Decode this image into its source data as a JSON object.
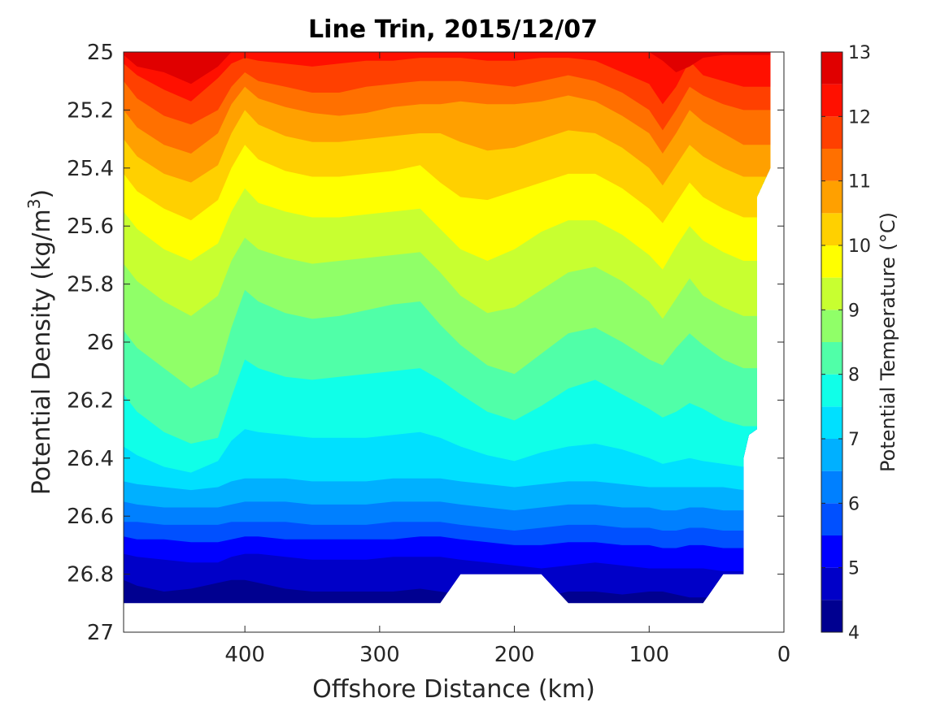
{
  "chart_data": {
    "type": "contour",
    "title": "Line Trin, 2015/12/07",
    "xlabel": "Offshore Distance (km)",
    "ylabel": "Potential Density (kg/m",
    "ylabel_superscript": "3",
    "ylabel_suffix": ")",
    "colorbar_label": "Potential Temperature (°C)",
    "xlim": [
      490,
      0
    ],
    "xaxis_reversed": true,
    "ylim": [
      25.0,
      27.0
    ],
    "yaxis_reversed": true,
    "x_ticks": [
      400,
      300,
      200,
      100,
      0
    ],
    "x_tick_labels": [
      "400",
      "300",
      "200",
      "100",
      "0"
    ],
    "y_ticks": [
      25.0,
      25.2,
      25.4,
      25.6,
      25.8,
      26.0,
      26.2,
      26.4,
      26.6,
      26.8,
      27.0
    ],
    "y_tick_labels": [
      "25",
      "25.2",
      "25.4",
      "25.6",
      "25.8",
      "26",
      "26.2",
      "26.4",
      "26.6",
      "26.8",
      "27"
    ],
    "colorbar_range": [
      4,
      13
    ],
    "colorbar_ticks": [
      4,
      5,
      6,
      7,
      8,
      9,
      10,
      11,
      12,
      13
    ],
    "colorbar_tick_labels": [
      "4",
      "5",
      "6",
      "7",
      "8",
      "9",
      "10",
      "11",
      "12",
      "13"
    ],
    "contour_step": 0.5,
    "level_colors": [
      "#000090",
      "#0000c8",
      "#0000ff",
      "#0050ff",
      "#0080ff",
      "#00b0ff",
      "#00e0ff",
      "#10ffe8",
      "#50ffa8",
      "#90ff68",
      "#c8ff30",
      "#ffff00",
      "#ffd000",
      "#ffa000",
      "#ff7000",
      "#ff4000",
      "#ff1000",
      "#e00000"
    ],
    "x_stations": [
      490,
      480,
      460,
      440,
      420,
      410,
      400,
      390,
      370,
      350,
      330,
      310,
      290,
      270,
      255,
      240,
      220,
      200,
      180,
      160,
      140,
      120,
      100,
      90,
      80,
      70,
      60,
      45,
      30
    ],
    "isotherms": [
      {
        "temperature": 12.5,
        "sigma": [
          25.01,
          25.05,
          25.07,
          25.11,
          25.05,
          25.0,
          25.0,
          25.0,
          25.0,
          25.0,
          25.0,
          25.0,
          25.0,
          25.0,
          25.0,
          25.0,
          25.0,
          25.0,
          25.0,
          25.0,
          25.0,
          25.0,
          25.0,
          25.03,
          25.07,
          25.05,
          25.02,
          25.01,
          25.01
        ]
      },
      {
        "temperature": 12.0,
        "sigma": [
          25.04,
          25.08,
          25.13,
          25.17,
          25.09,
          25.04,
          25.02,
          25.03,
          25.04,
          25.05,
          25.04,
          25.03,
          25.03,
          25.02,
          25.02,
          25.02,
          25.03,
          25.03,
          25.02,
          25.02,
          25.03,
          25.07,
          25.11,
          25.18,
          25.12,
          25.03,
          25.08,
          25.1,
          25.12
        ]
      },
      {
        "temperature": 11.5,
        "sigma": [
          25.1,
          25.16,
          25.22,
          25.25,
          25.2,
          25.12,
          25.07,
          25.1,
          25.12,
          25.14,
          25.14,
          25.12,
          25.11,
          25.1,
          25.1,
          25.1,
          25.11,
          25.12,
          25.1,
          25.08,
          25.1,
          25.14,
          25.2,
          25.27,
          25.2,
          25.12,
          25.15,
          25.18,
          25.2
        ]
      },
      {
        "temperature": 11.0,
        "sigma": [
          25.2,
          25.26,
          25.32,
          25.35,
          25.28,
          25.18,
          25.12,
          25.16,
          25.19,
          25.21,
          25.22,
          25.21,
          25.19,
          25.18,
          25.18,
          25.17,
          25.18,
          25.18,
          25.17,
          25.15,
          25.17,
          25.22,
          25.28,
          25.35,
          25.28,
          25.2,
          25.24,
          25.28,
          25.32
        ]
      },
      {
        "temperature": 10.5,
        "sigma": [
          25.3,
          25.36,
          25.42,
          25.45,
          25.39,
          25.28,
          25.2,
          25.25,
          25.29,
          25.31,
          25.31,
          25.3,
          25.29,
          25.28,
          25.28,
          25.31,
          25.34,
          25.33,
          25.3,
          25.27,
          25.28,
          25.33,
          25.4,
          25.46,
          25.39,
          25.32,
          25.36,
          25.4,
          25.43
        ]
      },
      {
        "temperature": 10.0,
        "sigma": [
          25.42,
          25.48,
          25.54,
          25.58,
          25.51,
          25.4,
          25.32,
          25.37,
          25.41,
          25.43,
          25.43,
          25.42,
          25.41,
          25.39,
          25.45,
          25.5,
          25.51,
          25.48,
          25.45,
          25.42,
          25.42,
          25.47,
          25.54,
          25.59,
          25.52,
          25.45,
          25.5,
          25.54,
          25.57
        ]
      },
      {
        "temperature": 9.5,
        "sigma": [
          25.55,
          25.61,
          25.68,
          25.72,
          25.66,
          25.55,
          25.47,
          25.52,
          25.55,
          25.57,
          25.57,
          25.56,
          25.55,
          25.54,
          25.61,
          25.68,
          25.72,
          25.68,
          25.62,
          25.58,
          25.58,
          25.63,
          25.7,
          25.75,
          25.67,
          25.6,
          25.65,
          25.69,
          25.72
        ]
      },
      {
        "temperature": 9.0,
        "sigma": [
          25.73,
          25.79,
          25.86,
          25.91,
          25.84,
          25.72,
          25.64,
          25.68,
          25.71,
          25.73,
          25.72,
          25.71,
          25.7,
          25.69,
          25.76,
          25.84,
          25.9,
          25.88,
          25.82,
          25.76,
          25.74,
          25.79,
          25.86,
          25.92,
          25.85,
          25.78,
          25.84,
          25.88,
          25.91
        ]
      },
      {
        "temperature": 8.5,
        "sigma": [
          25.96,
          26.02,
          26.09,
          26.16,
          26.11,
          25.95,
          25.82,
          25.86,
          25.9,
          25.92,
          25.91,
          25.89,
          25.87,
          25.86,
          25.94,
          26.01,
          26.08,
          26.11,
          26.04,
          25.97,
          25.95,
          26.0,
          26.06,
          26.08,
          26.02,
          25.97,
          26.01,
          26.06,
          26.09
        ]
      },
      {
        "temperature": 8.0,
        "sigma": [
          26.18,
          26.24,
          26.31,
          26.35,
          26.33,
          26.19,
          26.06,
          26.09,
          26.12,
          26.13,
          26.12,
          26.11,
          26.1,
          26.09,
          26.13,
          26.18,
          26.24,
          26.27,
          26.22,
          26.16,
          26.13,
          26.18,
          26.23,
          26.26,
          26.24,
          26.21,
          26.23,
          26.27,
          26.29
        ]
      },
      {
        "temperature": 7.5,
        "sigma": [
          26.36,
          26.39,
          26.43,
          26.45,
          26.41,
          26.34,
          26.3,
          26.31,
          26.32,
          26.33,
          26.33,
          26.33,
          26.32,
          26.31,
          26.33,
          26.36,
          26.39,
          26.41,
          26.38,
          26.36,
          26.35,
          26.37,
          26.4,
          26.42,
          26.41,
          26.4,
          26.41,
          26.42,
          26.43
        ]
      },
      {
        "temperature": 7.0,
        "sigma": [
          26.48,
          26.49,
          26.5,
          26.51,
          26.5,
          26.48,
          26.47,
          26.47,
          26.47,
          26.48,
          26.48,
          26.48,
          26.47,
          26.47,
          26.47,
          26.48,
          26.49,
          26.5,
          26.49,
          26.48,
          26.48,
          26.49,
          26.5,
          26.5,
          26.5,
          26.5,
          26.5,
          26.5,
          26.51
        ]
      },
      {
        "temperature": 6.5,
        "sigma": [
          26.55,
          26.56,
          26.57,
          26.57,
          26.57,
          26.56,
          26.55,
          26.55,
          26.55,
          26.56,
          26.56,
          26.56,
          26.55,
          26.55,
          26.55,
          26.56,
          26.57,
          26.58,
          26.57,
          26.56,
          26.56,
          26.57,
          26.57,
          26.58,
          26.58,
          26.57,
          26.57,
          26.58,
          26.58
        ]
      },
      {
        "temperature": 6.0,
        "sigma": [
          26.62,
          26.62,
          26.63,
          26.63,
          26.63,
          26.62,
          26.62,
          26.62,
          26.62,
          26.63,
          26.63,
          26.63,
          26.62,
          26.62,
          26.62,
          26.63,
          26.64,
          26.65,
          26.64,
          26.63,
          26.63,
          26.64,
          26.64,
          26.65,
          26.65,
          26.64,
          26.64,
          26.65,
          26.65
        ]
      },
      {
        "temperature": 5.5,
        "sigma": [
          26.67,
          26.68,
          26.68,
          26.69,
          26.69,
          26.68,
          26.67,
          26.67,
          26.68,
          26.68,
          26.68,
          26.68,
          26.68,
          26.67,
          26.67,
          26.68,
          26.69,
          26.7,
          26.7,
          26.69,
          26.69,
          26.7,
          26.7,
          26.71,
          26.71,
          26.7,
          26.7,
          26.71,
          26.71
        ]
      },
      {
        "temperature": 5.0,
        "sigma": [
          26.73,
          26.74,
          26.75,
          26.76,
          26.76,
          26.74,
          26.73,
          26.73,
          26.74,
          26.75,
          26.75,
          26.75,
          26.74,
          26.74,
          26.74,
          26.75,
          26.76,
          26.77,
          26.78,
          26.77,
          26.76,
          26.77,
          26.78,
          26.78,
          26.78,
          26.78,
          26.78,
          26.79,
          26.79
        ]
      },
      {
        "temperature": 4.5,
        "sigma": [
          26.82,
          26.84,
          26.86,
          26.85,
          26.83,
          26.82,
          26.82,
          26.83,
          26.85,
          26.86,
          26.86,
          26.86,
          26.86,
          26.85,
          26.86,
          26.87,
          26.88,
          26.88,
          26.88,
          26.86,
          26.86,
          26.87,
          26.86,
          26.86,
          26.87,
          26.88,
          26.88,
          26.88,
          26.88
        ]
      }
    ],
    "data_top_sigma": [
      25.0,
      25.0,
      25.0,
      25.0,
      25.0,
      25.0,
      25.0,
      25.0,
      25.0,
      25.0,
      25.0,
      25.0,
      25.0,
      25.0,
      25.0,
      25.0,
      25.0,
      25.0,
      25.0,
      25.0,
      25.0,
      25.0,
      25.0,
      25.0,
      25.0,
      25.0,
      25.0,
      25.0,
      25.0
    ],
    "data_bottom_sigma": [
      26.9,
      26.9,
      26.9,
      26.9,
      26.9,
      26.9,
      26.9,
      26.9,
      26.9,
      26.9,
      26.9,
      26.9,
      26.9,
      26.9,
      26.9,
      26.8,
      26.8,
      26.8,
      26.8,
      26.9,
      26.9,
      26.9,
      26.9,
      26.9,
      26.9,
      26.9,
      26.9,
      26.8,
      26.8
    ],
    "data_right_edge": [
      {
        "x": 30,
        "sigma": 26.8
      },
      {
        "x": 30,
        "sigma": 26.4
      },
      {
        "x": 26,
        "sigma": 26.32
      },
      {
        "x": 20,
        "sigma": 26.3
      },
      {
        "x": 20,
        "sigma": 25.5
      },
      {
        "x": 10,
        "sigma": 25.4
      },
      {
        "x": 10,
        "sigma": 25.0
      }
    ]
  }
}
